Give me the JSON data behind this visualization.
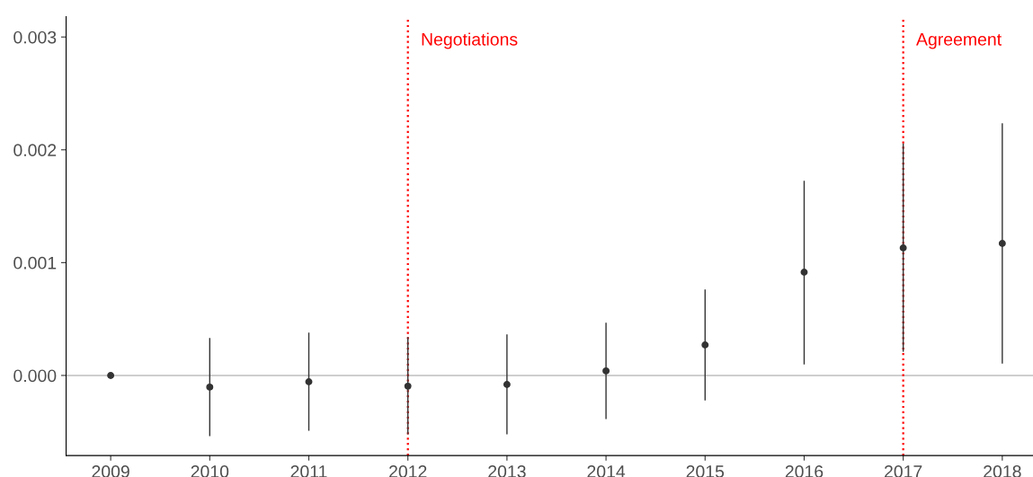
{
  "chart_data": {
    "type": "scatter",
    "x": [
      2009,
      2010,
      2011,
      2012,
      2013,
      2014,
      2015,
      2016,
      2017,
      2018
    ],
    "series": [
      {
        "color": "#333333",
        "values": [
          0.0,
          -0.000103,
          -5.6e-05,
          -9.5e-05,
          -8e-05,
          4e-05,
          0.00027,
          0.000915,
          0.00113,
          0.00117
        ],
        "errors": [
          null,
          [
            -0.000533,
            0.000326
          ],
          [
            -0.000485,
            0.000374
          ],
          [
            -0.000517,
            0.000334
          ],
          [
            -0.000517,
            0.000358
          ],
          [
            -0.000382,
            0.000461
          ],
          [
            -0.000215,
            0.000756
          ],
          [
            0.000103,
            0.00172
          ],
          [
            0.000215,
            0.00205
          ],
          [
            0.00011,
            0.00223
          ]
        ]
      }
    ],
    "marker": "circle",
    "xlim": [
      2008.55,
      2018.31
    ],
    "xticks": [
      2009,
      2010,
      2011,
      2012,
      2013,
      2014,
      2015,
      2016,
      2017,
      2018
    ],
    "ylim": [
      -0.00071,
      0.00318
    ],
    "yticks": [
      {
        "value": 0,
        "label": "0.000"
      },
      {
        "value": 0.001,
        "label": "0.001"
      },
      {
        "value": 0.002,
        "label": "0.002"
      },
      {
        "value": 0.003,
        "label": "0.003"
      }
    ],
    "grid": false,
    "ref_lines": [
      {
        "axis": "y",
        "value": 0,
        "label": null,
        "color": "#bebebe",
        "line_style": "solid"
      },
      {
        "axis": "x",
        "value": 2012,
        "label": "Negotiations",
        "color": "#ff0000",
        "line_style": "dotted"
      },
      {
        "axis": "x",
        "value": 2017,
        "label": "Agreement",
        "color": "#ff0000",
        "line_style": "dotted"
      }
    ]
  }
}
